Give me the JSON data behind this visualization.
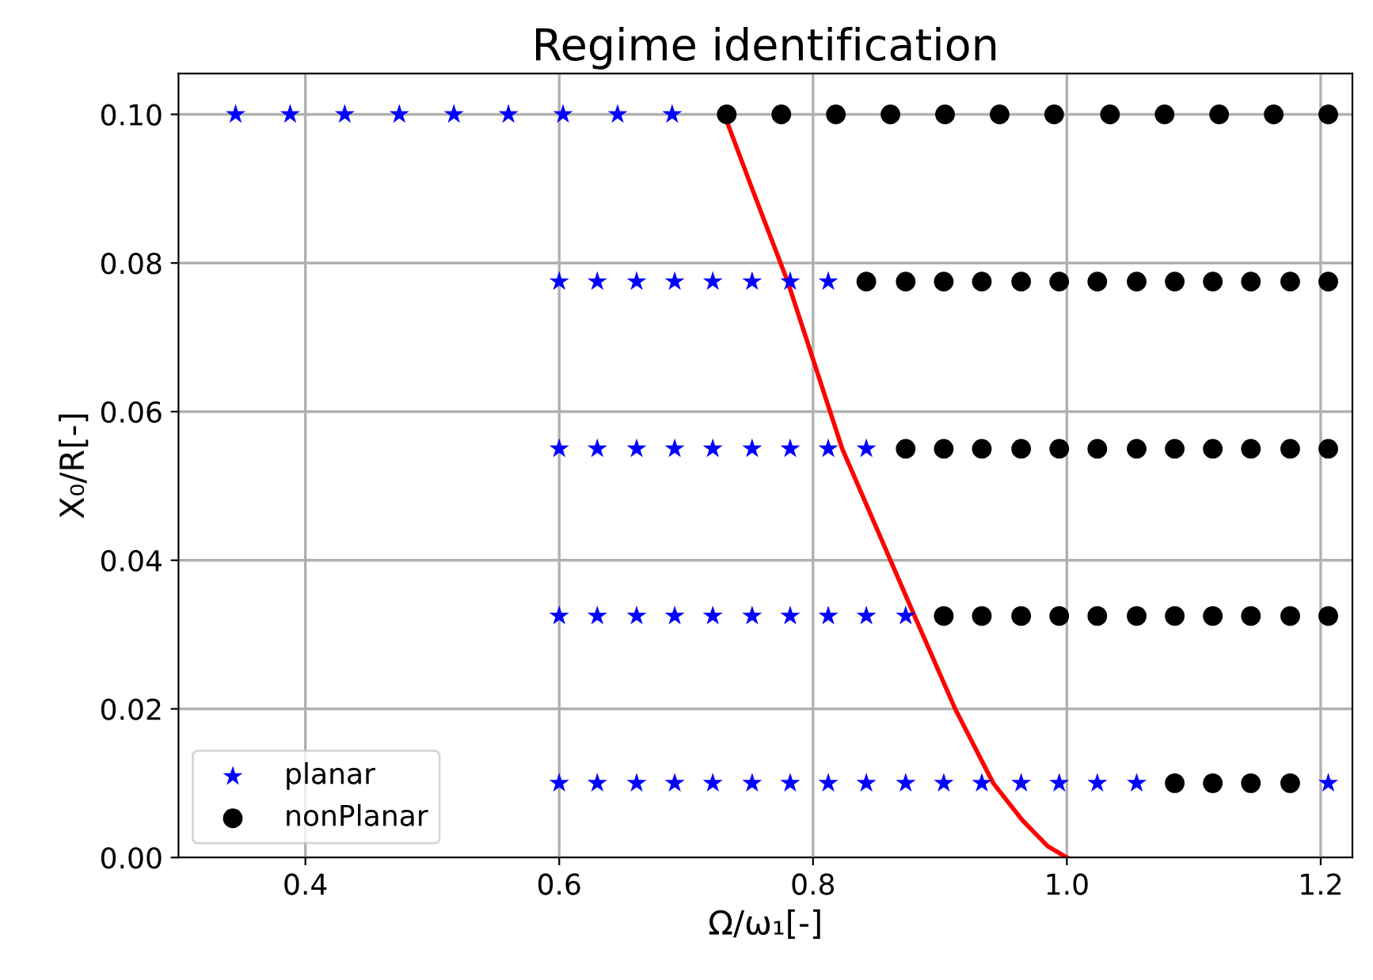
{
  "chart_data": {
    "type": "scatter",
    "title": "Regime identification",
    "xlabel": "Ω/ω₁[-]",
    "ylabel": "X₀/R[-]",
    "xlim": [
      0.3,
      1.225
    ],
    "xticks": [
      0.4,
      0.6,
      0.8,
      {
        "value": 1,
        "label": "1.0"
      },
      1.2
    ],
    "ylim": [
      0,
      0.1055
    ],
    "yticks": [
      {
        "value": 0,
        "label": "0.00"
      },
      {
        "value": 0.02,
        "label": "0.02"
      },
      {
        "value": 0.04,
        "label": "0.04"
      },
      {
        "value": 0.06,
        "label": "0.06"
      },
      {
        "value": 0.08,
        "label": "0.08"
      },
      {
        "value": 0.1,
        "label": "0.10"
      }
    ],
    "grid": true,
    "legend": "bottom left",
    "series": [
      {
        "name": "planar",
        "marker": "star",
        "color": "#0000ff",
        "x": [
          0.345,
          0.388,
          0.431,
          0.474,
          0.517,
          0.56,
          0.603,
          0.646,
          0.689,
          0.6,
          0.63,
          0.661,
          0.691,
          0.721,
          0.752,
          0.782,
          0.812,
          0.6,
          0.63,
          0.661,
          0.691,
          0.721,
          0.752,
          0.782,
          0.812,
          0.842,
          0.6,
          0.63,
          0.661,
          0.691,
          0.721,
          0.752,
          0.782,
          0.812,
          0.842,
          0.873,
          0.6,
          0.63,
          0.661,
          0.691,
          0.721,
          0.752,
          0.782,
          0.812,
          0.842,
          0.873,
          0.903,
          0.933,
          0.964,
          0.994,
          1.024,
          1.055,
          1.206
        ],
        "values": [
          0.1,
          0.1,
          0.1,
          0.1,
          0.1,
          0.1,
          0.1,
          0.1,
          0.1,
          0.0775,
          0.0775,
          0.0775,
          0.0775,
          0.0775,
          0.0775,
          0.0775,
          0.0775,
          0.055,
          0.055,
          0.055,
          0.055,
          0.055,
          0.055,
          0.055,
          0.055,
          0.055,
          0.0325,
          0.0325,
          0.0325,
          0.0325,
          0.0325,
          0.0325,
          0.0325,
          0.0325,
          0.0325,
          0.0325,
          0.01,
          0.01,
          0.01,
          0.01,
          0.01,
          0.01,
          0.01,
          0.01,
          0.01,
          0.01,
          0.01,
          0.01,
          0.01,
          0.01,
          0.01,
          0.01,
          0.01
        ]
      },
      {
        "name": "nonPlanar",
        "marker": "circle",
        "color": "#000000",
        "x": [
          0.732,
          0.775,
          0.818,
          0.861,
          0.904,
          0.947,
          0.99,
          1.034,
          1.077,
          1.12,
          1.163,
          1.206,
          0.842,
          0.873,
          0.903,
          0.933,
          0.964,
          0.994,
          1.024,
          1.055,
          1.085,
          1.115,
          1.145,
          1.176,
          1.206,
          0.873,
          0.903,
          0.933,
          0.964,
          0.994,
          1.024,
          1.055,
          1.085,
          1.115,
          1.145,
          1.176,
          1.206,
          0.903,
          0.933,
          0.964,
          0.994,
          1.024,
          1.055,
          1.085,
          1.115,
          1.145,
          1.176,
          1.206,
          1.085,
          1.115,
          1.145,
          1.176
        ],
        "values": [
          0.1,
          0.1,
          0.1,
          0.1,
          0.1,
          0.1,
          0.1,
          0.1,
          0.1,
          0.1,
          0.1,
          0.1,
          0.0775,
          0.0775,
          0.0775,
          0.0775,
          0.0775,
          0.0775,
          0.0775,
          0.0775,
          0.0775,
          0.0775,
          0.0775,
          0.0775,
          0.0775,
          0.055,
          0.055,
          0.055,
          0.055,
          0.055,
          0.055,
          0.055,
          0.055,
          0.055,
          0.055,
          0.055,
          0.055,
          0.0325,
          0.0325,
          0.0325,
          0.0325,
          0.0325,
          0.0325,
          0.0325,
          0.0325,
          0.0325,
          0.0325,
          0.0325,
          0.01,
          0.01,
          0.01,
          0.01
        ]
      },
      {
        "type": "line",
        "marker": "none",
        "line_style": "solid",
        "color": "#ff0000",
        "x": [
          0.73,
          0.752,
          0.78,
          0.823,
          0.88,
          0.912,
          0.942,
          0.965,
          0.985,
          1.0
        ],
        "values": [
          0.1,
          0.09,
          0.0775,
          0.055,
          0.0325,
          0.02,
          0.01,
          0.005,
          0.0015,
          0
        ]
      }
    ]
  }
}
